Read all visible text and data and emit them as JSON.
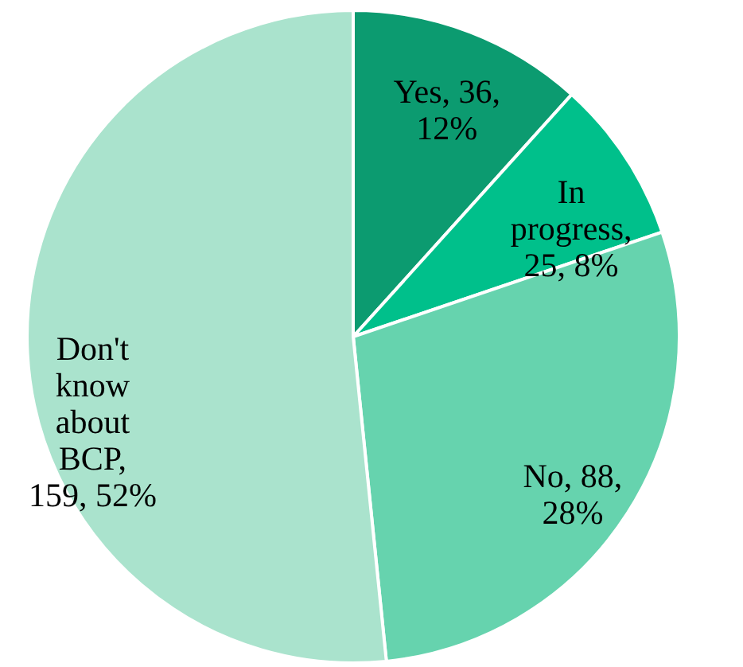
{
  "chart_data": {
    "type": "pie",
    "categories": [
      "Yes",
      "In progress",
      "No",
      "Don't know about BCP"
    ],
    "values": [
      36,
      25,
      88,
      159
    ],
    "colors": [
      "#0c9b70",
      "#00c08b",
      "#66d3ae",
      "#aae3cd"
    ],
    "value_labels": [
      ", 36, 12%",
      ", 25, 8%",
      ", 88, 28%",
      ", 159, 52%"
    ]
  }
}
